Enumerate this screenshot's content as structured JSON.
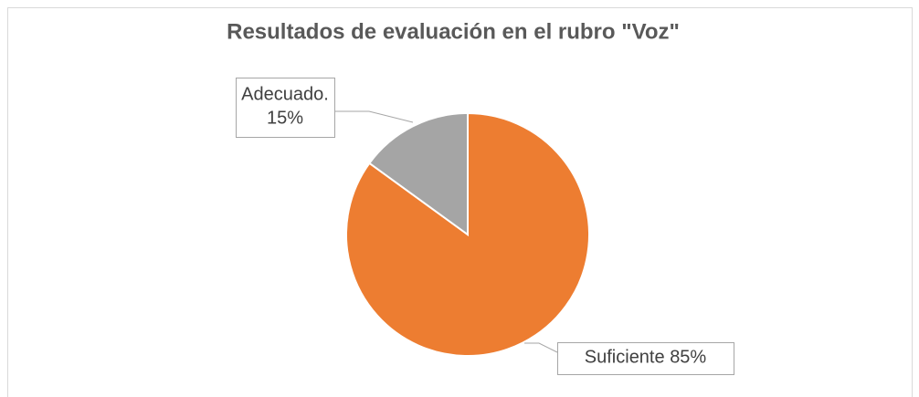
{
  "chart_data": {
    "type": "pie",
    "title": "Resultados de evaluación en el rubro \"Voz\"",
    "categories": [
      "Suficiente",
      "Adecuado."
    ],
    "values": [
      85,
      15
    ],
    "value_labels": [
      "85%",
      "15%"
    ],
    "colors": [
      "#ed7d31",
      "#a5a5a5"
    ]
  }
}
